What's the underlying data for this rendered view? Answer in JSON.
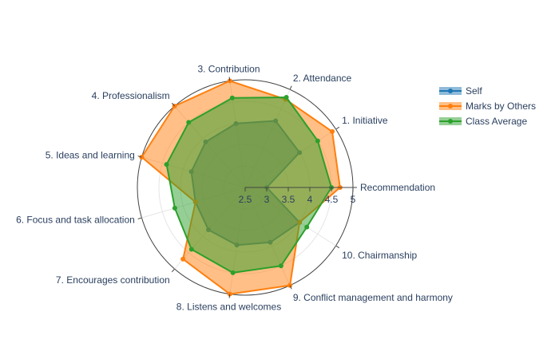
{
  "chart_data": {
    "type": "radar",
    "categories": [
      "Recommendation",
      "1. Initiative",
      "2. Attendance",
      "3. Contribution",
      "4. Professionalism",
      "5. Ideas and learning",
      "6. Focus and task allocation",
      "7. Encourages contribution",
      "8. Listens and welcomes",
      "9. Conflict management and harmony",
      "10. Chairmanship"
    ],
    "radial_range": [
      2.5,
      5
    ],
    "radial_ticks": [
      "2.5",
      "3",
      "3.5",
      "4",
      "4.5",
      "5"
    ],
    "legend_position": "top-right",
    "series": [
      {
        "name": "Self",
        "color": "#1f77b4",
        "values": [
          3.0,
          4.0,
          4.2,
          4.0,
          3.9,
          3.8,
          3.7,
          3.8,
          3.85,
          3.9,
          4.0
        ]
      },
      {
        "name": "Marks by Others",
        "color": "#ff7f0e",
        "values": [
          4.7,
          4.9,
          4.75,
          5.0,
          5.0,
          5.0,
          3.7,
          4.7,
          5.0,
          5.0,
          4.0
        ]
      },
      {
        "name": "Class Average",
        "color": "#2ca02c",
        "values": [
          4.5,
          4.5,
          4.8,
          4.6,
          4.5,
          4.4,
          4.2,
          4.4,
          4.5,
          4.5,
          4.2
        ]
      }
    ]
  }
}
